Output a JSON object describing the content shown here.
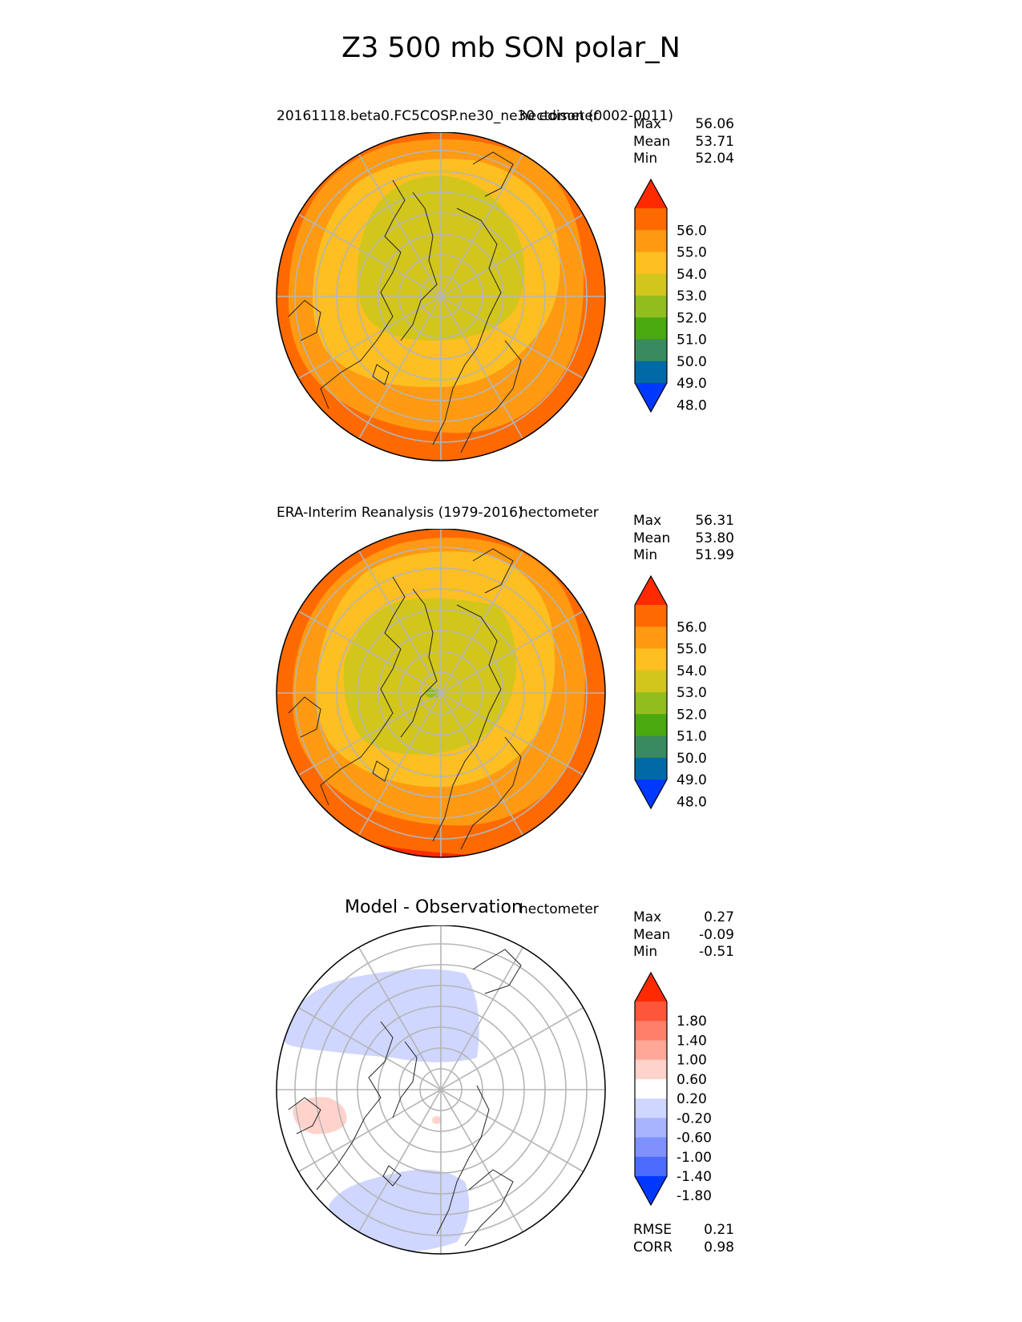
{
  "figure_title": "Z3 500 mb SON polar_N",
  "panels": [
    {
      "title": "20161118.beta0.FC5COSP.ne30_ne30 edison (0002-0011)",
      "units": "hectometer",
      "stats": [
        {
          "label": "Max",
          "value": "56.06"
        },
        {
          "label": "Mean",
          "value": "53.71"
        },
        {
          "label": "Min",
          "value": "52.04"
        }
      ]
    },
    {
      "title": "ERA-Interim Reanalysis (1979-2016)",
      "units": "hectometer",
      "stats": [
        {
          "label": "Max",
          "value": "56.31"
        },
        {
          "label": "Mean",
          "value": "53.80"
        },
        {
          "label": "Min",
          "value": "51.99"
        }
      ]
    },
    {
      "title": "Model - Observation",
      "units": "hectometer",
      "stats": [
        {
          "label": "Max",
          "value": "0.27"
        },
        {
          "label": "Mean",
          "value": "-0.09"
        },
        {
          "label": "Min",
          "value": "-0.51"
        }
      ],
      "metrics": [
        {
          "label": "RMSE",
          "value": "0.21"
        },
        {
          "label": "CORR",
          "value": "0.98"
        }
      ]
    }
  ],
  "colorbars": {
    "field": {
      "tick_labels": [
        "56.0",
        "55.0",
        "54.0",
        "53.0",
        "52.0",
        "51.0",
        "50.0",
        "49.0",
        "48.0"
      ],
      "colors": [
        "#ff2a00",
        "#ff6a00",
        "#ff9a12",
        "#fdbf21",
        "#d2c61c",
        "#92be1d",
        "#4aa90e",
        "#3a8a5f",
        "#006aa4",
        "#0038ff"
      ]
    },
    "diff": {
      "tick_labels": [
        "1.80",
        "1.40",
        "1.00",
        "0.60",
        "0.20",
        "-0.20",
        "-0.60",
        "-1.00",
        "-1.40",
        "-1.80"
      ],
      "colors": [
        "#ff2a00",
        "#ff553a",
        "#ff7f6a",
        "#ffa898",
        "#ffd3cb",
        "#ffffff",
        "#cfd6ff",
        "#a9b4ff",
        "#7e91ff",
        "#4d6aff",
        "#0038ff"
      ]
    }
  },
  "map_colors": {
    "panel1": {
      "outer": "#ff6a00",
      "ring2": "#ff9a12",
      "ring3": "#fdbf21",
      "core": "#d2c61c"
    },
    "panel2": {
      "rim": "#ff2a00",
      "outer": "#ff6a00",
      "ring2": "#ff9a12",
      "ring3": "#fdbf21",
      "core": "#d2c61c",
      "center": "#92be1d"
    },
    "panel3": {
      "background": "#ffffff",
      "negative": "#cfd6ff",
      "positive": "#ffd3cb"
    }
  }
}
